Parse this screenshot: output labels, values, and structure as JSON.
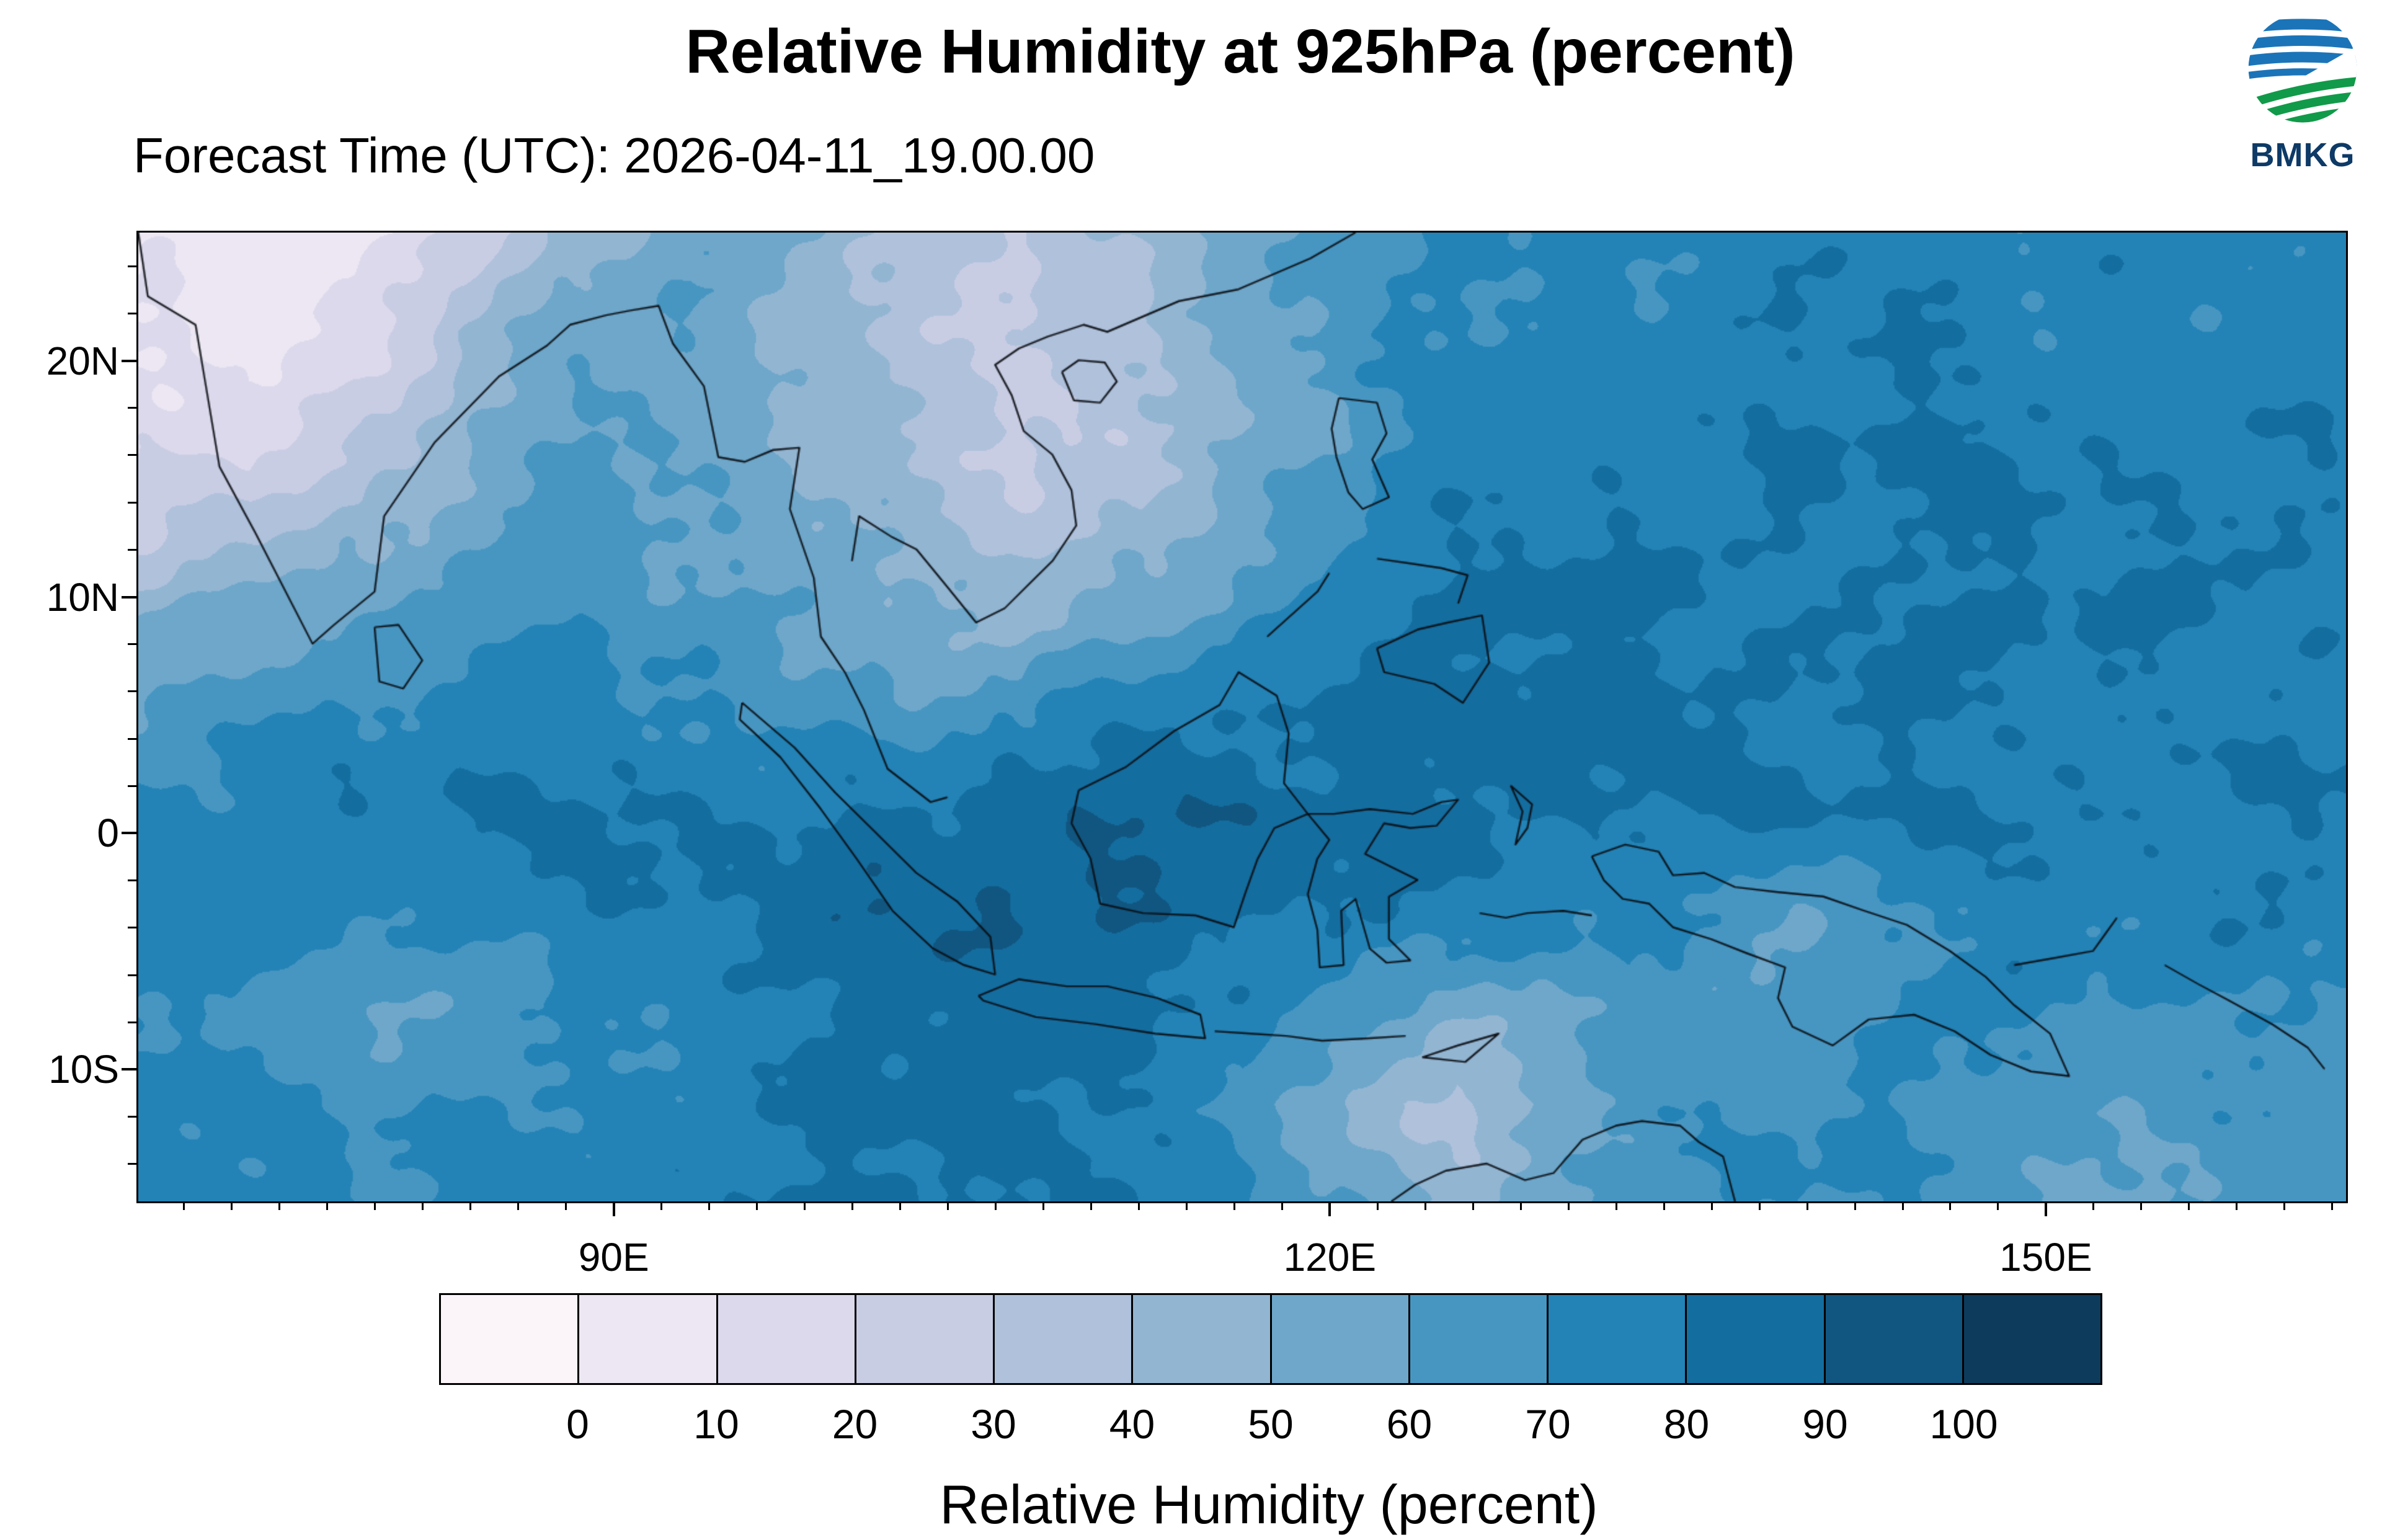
{
  "logo": {
    "text": "BMKG"
  },
  "chart_data": {
    "type": "heatmap",
    "title": "Relative Humidity at 925hPa (percent)",
    "forecast_time": "Forecast Time (UTC): 2026-04-11_19.00.00",
    "x_axis": {
      "range_lon": [
        70,
        162.5
      ],
      "minor_step_deg": 2,
      "ticks": [
        {
          "label": "90E",
          "lon": 90
        },
        {
          "label": "120E",
          "lon": 120
        },
        {
          "label": "150E",
          "lon": 150
        }
      ]
    },
    "y_axis": {
      "range_lat": [
        -15.5,
        25.5
      ],
      "minor_step_deg": 2,
      "ticks": [
        {
          "label": "20N",
          "lat": 20
        },
        {
          "label": "10N",
          "lat": 10
        },
        {
          "label": "0",
          "lat": 0
        },
        {
          "label": "10S",
          "lat": -10
        }
      ]
    },
    "colorbar": {
      "label": "Relative Humidity (percent)",
      "tick_labels": [
        "0",
        "10",
        "20",
        "30",
        "40",
        "50",
        "60",
        "70",
        "80",
        "90",
        "100"
      ],
      "colors": [
        "#fbf5fa",
        "#ece7f2",
        "#dcd9ec",
        "#c9cde4",
        "#afc1db",
        "#92b5d2",
        "#6ea7ca",
        "#4796c2",
        "#2383b6",
        "#146d9f",
        "#105680",
        "#0d3b5c"
      ]
    },
    "grid": {
      "lon_min": 70,
      "lon_max": 162.5,
      "lat_max": 25.5,
      "lat_min": -15.5,
      "cols": 21,
      "rows": 11,
      "values_rows_north_to_south": [
        [
          6,
          5,
          10,
          22,
          45,
          58,
          50,
          38,
          30,
          42,
          55,
          65,
          72,
          70,
          73,
          76,
          74,
          71,
          74,
          76,
          73
        ],
        [
          12,
          7,
          14,
          40,
          55,
          57,
          48,
          36,
          28,
          38,
          52,
          66,
          73,
          76,
          74,
          77,
          79,
          74,
          77,
          74,
          77
        ],
        [
          16,
          14,
          26,
          48,
          60,
          55,
          50,
          40,
          27,
          33,
          48,
          64,
          76,
          79,
          77,
          79,
          81,
          79,
          77,
          79,
          77
        ],
        [
          28,
          36,
          46,
          58,
          64,
          58,
          53,
          44,
          34,
          40,
          54,
          68,
          79,
          81,
          79,
          81,
          79,
          81,
          79,
          81,
          79
        ],
        [
          48,
          56,
          62,
          67,
          69,
          64,
          58,
          53,
          49,
          56,
          66,
          74,
          81,
          84,
          81,
          79,
          81,
          79,
          81,
          79,
          81
        ],
        [
          64,
          70,
          73,
          75,
          75,
          72,
          67,
          64,
          70,
          76,
          79,
          82,
          85,
          84,
          81,
          79,
          81,
          79,
          79,
          77,
          79
        ],
        [
          73,
          76,
          78,
          79,
          81,
          79,
          80,
          83,
          86,
          89,
          86,
          83,
          85,
          82,
          81,
          81,
          79,
          81,
          79,
          79,
          81
        ],
        [
          78,
          75,
          72,
          75,
          78,
          80,
          83,
          87,
          89,
          87,
          84,
          81,
          78,
          74,
          69,
          61,
          70,
          78,
          75,
          78,
          75
        ],
        [
          72,
          67,
          61,
          64,
          69,
          72,
          78,
          83,
          86,
          83,
          76,
          61,
          51,
          61,
          67,
          64,
          71,
          72,
          69,
          72,
          69
        ],
        [
          75,
          71,
          67,
          71,
          74,
          77,
          80,
          82,
          81,
          78,
          70,
          47,
          36,
          54,
          66,
          70,
          72,
          67,
          61,
          65,
          68
        ],
        [
          78,
          75,
          71,
          74,
          76,
          78,
          81,
          83,
          80,
          77,
          71,
          57,
          47,
          60,
          68,
          72,
          70,
          64,
          59,
          63,
          67
        ]
      ]
    },
    "coastlines": [
      [
        [
          70,
          25.5
        ],
        [
          70.4,
          22.8
        ],
        [
          72.4,
          21.6
        ],
        [
          72.8,
          19.2
        ],
        [
          73.4,
          15.6
        ],
        [
          74.9,
          12.8
        ],
        [
          77.3,
          8.1
        ],
        [
          78.2,
          8.9
        ],
        [
          79.9,
          10.3
        ],
        [
          80.3,
          13.5
        ],
        [
          82.4,
          16.6
        ],
        [
          85.1,
          19.4
        ],
        [
          87.1,
          20.7
        ],
        [
          88.1,
          21.6
        ],
        [
          89.6,
          22
        ],
        [
          90.6,
          22.2
        ],
        [
          91.8,
          22.4
        ],
        [
          92.4,
          20.8
        ],
        [
          93.7,
          19
        ],
        [
          94.3,
          16
        ],
        [
          95.4,
          15.8
        ],
        [
          96.6,
          16.3
        ],
        [
          97.7,
          16.4
        ],
        [
          97.3,
          13.8
        ],
        [
          98.3,
          10.9
        ],
        [
          98.6,
          8.4
        ],
        [
          99.6,
          6.9
        ],
        [
          100.4,
          5.3
        ],
        [
          101.4,
          2.8
        ],
        [
          103.2,
          1.4
        ],
        [
          103.9,
          1.6
        ]
      ],
      [
        [
          79.9,
          8.8
        ],
        [
          80.9,
          8.9
        ],
        [
          81.9,
          7.4
        ],
        [
          81.1,
          6.2
        ],
        [
          80.1,
          6.5
        ],
        [
          79.9,
          8.8
        ]
      ],
      [
        [
          99.9,
          11.6
        ],
        [
          100.2,
          13.5
        ],
        [
          101.6,
          12.6
        ],
        [
          102.6,
          12.1
        ],
        [
          103.9,
          10.5
        ],
        [
          105.1,
          9
        ],
        [
          106.3,
          9.6
        ],
        [
          107.3,
          10.6
        ],
        [
          108.3,
          11.6
        ],
        [
          109.3,
          13.1
        ],
        [
          109.1,
          14.6
        ],
        [
          108.3,
          16.1
        ],
        [
          107.1,
          17.1
        ],
        [
          106.6,
          18.6
        ],
        [
          105.9,
          19.9
        ],
        [
          106.9,
          20.6
        ],
        [
          108.1,
          21.1
        ],
        [
          109.6,
          21.6
        ],
        [
          110.6,
          21.3
        ],
        [
          113.6,
          22.6
        ],
        [
          116.1,
          23.1
        ],
        [
          119.1,
          24.4
        ],
        [
          121,
          25.5
        ]
      ],
      [
        [
          108.7,
          19.6
        ],
        [
          109.4,
          20.1
        ],
        [
          110.5,
          20
        ],
        [
          111,
          19.2
        ],
        [
          110.3,
          18.3
        ],
        [
          109.2,
          18.4
        ],
        [
          108.7,
          19.6
        ]
      ],
      [
        [
          95.3,
          5.6
        ],
        [
          97.5,
          3.7
        ],
        [
          99.2,
          1.8
        ],
        [
          100.9,
          0.1
        ],
        [
          102.6,
          -1.6
        ],
        [
          104.3,
          -2.8
        ],
        [
          105.7,
          -4.3
        ],
        [
          105.9,
          -5.9
        ],
        [
          104.6,
          -5.5
        ],
        [
          103.3,
          -4.8
        ],
        [
          101.6,
          -3.2
        ],
        [
          100.1,
          -1
        ],
        [
          98.6,
          1.1
        ],
        [
          96.9,
          3.3
        ],
        [
          95.2,
          4.9
        ],
        [
          95.3,
          5.6
        ]
      ],
      [
        [
          105.2,
          -6.8
        ],
        [
          106.9,
          -6.1
        ],
        [
          108.9,
          -6.4
        ],
        [
          110.6,
          -6.4
        ],
        [
          112.7,
          -6.9
        ],
        [
          114.5,
          -7.6
        ],
        [
          114.7,
          -8.6
        ],
        [
          112.6,
          -8.4
        ],
        [
          110.1,
          -8
        ],
        [
          107.6,
          -7.7
        ],
        [
          105.4,
          -7
        ],
        [
          105.2,
          -6.8
        ]
      ],
      [
        [
          115.1,
          -8.3
        ],
        [
          116.6,
          -8.4
        ],
        [
          118.1,
          -8.5
        ],
        [
          119.6,
          -8.7
        ],
        [
          121.6,
          -8.6
        ],
        [
          123.1,
          -8.5
        ]
      ],
      [
        [
          123.8,
          -9.4
        ],
        [
          125.3,
          -8.9
        ],
        [
          127,
          -8.4
        ],
        [
          125.6,
          -9.6
        ],
        [
          123.8,
          -9.4
        ]
      ],
      [
        [
          109.4,
          1.9
        ],
        [
          109.1,
          0.5
        ],
        [
          109.9,
          -1
        ],
        [
          110.3,
          -2.9
        ],
        [
          112.1,
          -3.3
        ],
        [
          114.3,
          -3.4
        ],
        [
          115.9,
          -3.9
        ],
        [
          116.4,
          -2.4
        ],
        [
          116.9,
          -1
        ],
        [
          117.6,
          0.3
        ],
        [
          119,
          0.9
        ],
        [
          118,
          2.2
        ],
        [
          118.2,
          4.3
        ],
        [
          117.7,
          5.9
        ],
        [
          116.1,
          6.9
        ],
        [
          115.3,
          5.5
        ],
        [
          113.4,
          4.4
        ],
        [
          111.4,
          2.9
        ],
        [
          110,
          2.2
        ],
        [
          109.4,
          1.9
        ]
      ],
      [
        [
          119,
          0.9
        ],
        [
          120.1,
          0.9
        ],
        [
          121.6,
          1.1
        ],
        [
          123.4,
          0.9
        ],
        [
          124.6,
          1.4
        ],
        [
          125.3,
          1.5
        ],
        [
          124.4,
          0.4
        ],
        [
          123.3,
          0.3
        ],
        [
          122.2,
          0.5
        ],
        [
          121.4,
          -0.8
        ],
        [
          122.6,
          -1.4
        ],
        [
          123.6,
          -1.9
        ],
        [
          122.4,
          -2.6
        ],
        [
          122.4,
          -4.4
        ],
        [
          123.3,
          -5.3
        ],
        [
          122.3,
          -5.4
        ],
        [
          121.6,
          -4.8
        ],
        [
          121,
          -2.7
        ],
        [
          120.4,
          -3.2
        ],
        [
          120.5,
          -5.5
        ],
        [
          119.5,
          -5.6
        ],
        [
          119.4,
          -4
        ],
        [
          119,
          -2.5
        ],
        [
          119.4,
          -1
        ],
        [
          119.9,
          -0.2
        ],
        [
          119,
          0.9
        ]
      ],
      [
        [
          120.3,
          18.5
        ],
        [
          121.9,
          18.3
        ],
        [
          122.3,
          17
        ],
        [
          121.7,
          15.9
        ],
        [
          122.4,
          14.3
        ],
        [
          121.3,
          13.8
        ],
        [
          120.7,
          14.5
        ],
        [
          120.2,
          16
        ],
        [
          120,
          17.2
        ],
        [
          120.3,
          18.5
        ]
      ],
      [
        [
          121.9,
          11.7
        ],
        [
          123.3,
          11.5
        ],
        [
          124.6,
          11.3
        ],
        [
          125.7,
          11
        ],
        [
          125.3,
          9.8
        ]
      ],
      [
        [
          117.3,
          8.4
        ],
        [
          119.4,
          10.3
        ],
        [
          119.9,
          11.1
        ]
      ],
      [
        [
          121.9,
          7.9
        ],
        [
          123.6,
          8.7
        ],
        [
          124.9,
          9
        ],
        [
          126.3,
          9.3
        ],
        [
          126.6,
          7.3
        ],
        [
          125.5,
          5.6
        ],
        [
          124.3,
          6.4
        ],
        [
          122.2,
          6.9
        ],
        [
          121.9,
          7.9
        ]
      ],
      [
        [
          127.5,
          2.1
        ],
        [
          128.4,
          1.3
        ],
        [
          128.2,
          0.3
        ],
        [
          127.7,
          -0.4
        ],
        [
          128,
          1
        ],
        [
          127.5,
          2.1
        ]
      ],
      [
        [
          126.2,
          -3.3
        ],
        [
          127.3,
          -3.5
        ],
        [
          128.2,
          -3.3
        ],
        [
          129.7,
          -3.2
        ],
        [
          130.9,
          -3.4
        ]
      ],
      [
        [
          130.9,
          -0.9
        ],
        [
          132.3,
          -0.4
        ],
        [
          133.7,
          -0.7
        ],
        [
          134.3,
          -1.7
        ],
        [
          135.6,
          -1.6
        ],
        [
          136.9,
          -2.2
        ],
        [
          138.6,
          -2.4
        ],
        [
          140.6,
          -2.6
        ],
        [
          142.3,
          -3.2
        ],
        [
          144.1,
          -3.8
        ],
        [
          145.9,
          -4.9
        ],
        [
          147.4,
          -6
        ],
        [
          148.6,
          -7.2
        ],
        [
          150.1,
          -8.4
        ],
        [
          150.9,
          -10.2
        ],
        [
          149.3,
          -10
        ],
        [
          147.6,
          -9.3
        ],
        [
          146.1,
          -8.3
        ],
        [
          144.4,
          -7.6
        ],
        [
          142.5,
          -7.8
        ],
        [
          141,
          -8.9
        ],
        [
          139.3,
          -8.1
        ],
        [
          138.7,
          -6.9
        ],
        [
          139,
          -5.6
        ],
        [
          137.4,
          -5
        ],
        [
          135.9,
          -4.4
        ],
        [
          134.3,
          -3.9
        ],
        [
          133.3,
          -2.9
        ],
        [
          132.2,
          -2.7
        ],
        [
          131.4,
          -1.9
        ],
        [
          130.9,
          -0.9
        ]
      ],
      [
        [
          148.6,
          -5.5
        ],
        [
          150.3,
          -5.2
        ],
        [
          151.9,
          -4.9
        ],
        [
          152.4,
          -4.2
        ],
        [
          152.9,
          -3.5
        ]
      ],
      [
        [
          154.9,
          -5.5
        ],
        [
          156.3,
          -6.3
        ],
        [
          157.6,
          -7
        ],
        [
          159.4,
          -8
        ],
        [
          160.9,
          -9
        ],
        [
          161.6,
          -9.9
        ]
      ],
      [
        [
          122.5,
          -15.5
        ],
        [
          123.5,
          -14.8
        ],
        [
          124.8,
          -14.2
        ],
        [
          126.5,
          -13.9
        ],
        [
          128.1,
          -14.6
        ],
        [
          129.3,
          -14.3
        ],
        [
          130.5,
          -12.9
        ],
        [
          131.9,
          -12.3
        ],
        [
          133,
          -12.1
        ],
        [
          134.6,
          -12.3
        ],
        [
          135.4,
          -13
        ],
        [
          136.4,
          -13.6
        ],
        [
          136.9,
          -15.5
        ]
      ]
    ]
  }
}
